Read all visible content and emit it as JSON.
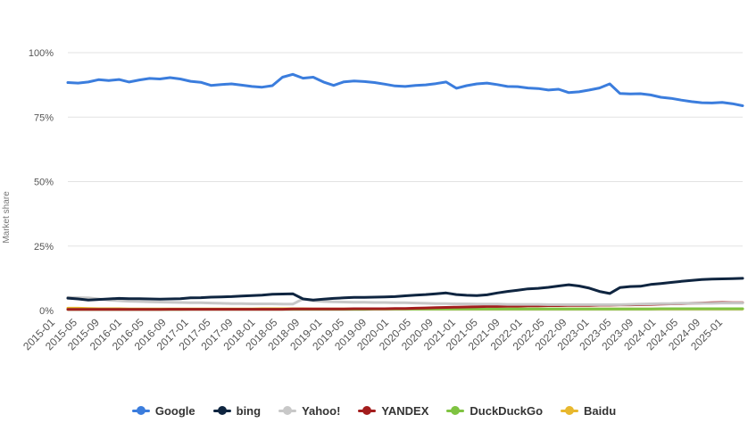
{
  "chart_data": {
    "type": "line",
    "title": "",
    "xlabel": "",
    "ylabel": "Market share",
    "ylim": [
      0,
      100
    ],
    "yticks": [
      "0%",
      "25%",
      "50%",
      "75%",
      "100%"
    ],
    "x_tick_labels": [
      "2015-01",
      "2015-05",
      "2015-09",
      "2016-01",
      "2016-05",
      "2016-09",
      "2017-01",
      "2017-05",
      "2017-09",
      "2018-01",
      "2018-05",
      "2018-09",
      "2019-01",
      "2019-05",
      "2019-09",
      "2020-01",
      "2020-05",
      "2020-09",
      "2021-01",
      "2021-05",
      "2021-09",
      "2022-01",
      "2022-05",
      "2022-09",
      "2023-01",
      "2023-05",
      "2023-09",
      "2024-01",
      "2024-05",
      "2024-09",
      "2025-01"
    ],
    "grid": true,
    "legend_position": "bottom-center",
    "series": [
      {
        "name": "Google",
        "color": "#3b7ddd",
        "values": [
          88.4,
          88.2,
          88.6,
          89.5,
          89.2,
          89.6,
          88.6,
          89.4,
          90.0,
          89.8,
          90.3,
          89.8,
          88.9,
          88.5,
          87.3,
          87.6,
          87.9,
          87.4,
          86.9,
          86.6,
          87.2,
          90.5,
          91.6,
          90.1,
          90.5,
          88.6,
          87.3,
          88.7,
          89.0,
          88.8,
          88.4,
          87.8,
          87.1,
          86.9,
          87.3,
          87.5,
          88.0,
          88.6,
          86.2,
          87.2,
          87.9,
          88.2,
          87.6,
          86.9,
          86.8,
          86.3,
          86.1,
          85.5,
          85.8,
          84.5,
          84.8,
          85.5,
          86.3,
          87.9,
          84.2,
          84.0,
          84.1,
          83.6,
          82.7,
          82.3,
          81.6,
          81.0,
          80.6,
          80.5,
          80.7,
          80.2,
          79.4
        ]
      },
      {
        "name": "bing",
        "color": "#0f2540",
        "values": [
          4.8,
          4.5,
          4.1,
          4.3,
          4.5,
          4.7,
          4.6,
          4.6,
          4.5,
          4.4,
          4.5,
          4.6,
          4.9,
          5.0,
          5.2,
          5.3,
          5.4,
          5.6,
          5.8,
          6.0,
          6.3,
          6.4,
          6.5,
          4.5,
          4.1,
          4.4,
          4.7,
          4.9,
          5.1,
          5.1,
          5.2,
          5.3,
          5.4,
          5.7,
          6.0,
          6.2,
          6.5,
          6.8,
          6.2,
          5.9,
          5.8,
          6.1,
          6.8,
          7.4,
          7.9,
          8.4,
          8.6,
          9.0,
          9.5,
          10.0,
          9.5,
          8.7,
          7.4,
          6.6,
          8.9,
          9.3,
          9.4,
          10.1,
          10.5,
          10.9,
          11.3,
          11.7,
          12.0,
          12.2,
          12.3,
          12.4,
          12.5
        ]
      },
      {
        "name": "Yahoo!",
        "color": "#c8c8c8",
        "values": [
          5.1,
          5.0,
          4.9,
          4.5,
          4.0,
          3.8,
          3.6,
          3.5,
          3.4,
          3.3,
          3.2,
          3.1,
          3.0,
          3.0,
          2.9,
          2.8,
          2.7,
          2.7,
          2.6,
          2.6,
          2.6,
          2.5,
          2.5,
          4.5,
          3.8,
          3.5,
          3.4,
          3.3,
          3.2,
          3.2,
          3.1,
          3.1,
          3.0,
          3.0,
          2.9,
          2.8,
          2.7,
          2.7,
          2.6,
          2.6,
          2.5,
          2.5,
          2.5,
          2.4,
          2.4,
          2.4,
          2.4,
          2.3,
          2.3,
          2.3,
          2.3,
          2.3,
          2.3,
          2.3,
          2.3,
          2.4,
          2.5,
          2.6,
          2.7,
          2.7,
          2.8,
          2.8,
          2.8,
          2.8,
          2.9,
          2.9,
          2.9
        ]
      },
      {
        "name": "YANDEX",
        "color": "#a31d1d",
        "values": [
          0.4,
          0.4,
          0.4,
          0.4,
          0.4,
          0.4,
          0.4,
          0.4,
          0.4,
          0.4,
          0.5,
          0.5,
          0.5,
          0.5,
          0.5,
          0.5,
          0.5,
          0.5,
          0.5,
          0.5,
          0.5,
          0.5,
          0.6,
          0.6,
          0.6,
          0.6,
          0.6,
          0.6,
          0.7,
          0.7,
          0.7,
          0.7,
          0.8,
          0.8,
          0.9,
          1.0,
          1.1,
          1.2,
          1.3,
          1.4,
          1.5,
          1.6,
          1.6,
          1.7,
          1.7,
          1.8,
          1.8,
          1.9,
          1.9,
          2.0,
          2.0,
          2.0,
          2.1,
          2.1,
          2.2,
          2.2,
          2.3,
          2.4,
          2.5,
          2.6,
          2.7,
          2.8,
          2.9,
          3.0,
          3.1,
          3.0,
          3.0
        ]
      },
      {
        "name": "DuckDuckGo",
        "color": "#7fc341",
        "values": [
          0.4,
          0.4,
          0.4,
          0.4,
          0.4,
          0.4,
          0.4,
          0.4,
          0.4,
          0.4,
          0.4,
          0.4,
          0.5,
          0.5,
          0.5,
          0.5,
          0.5,
          0.5,
          0.5,
          0.5,
          0.5,
          0.5,
          0.5,
          0.5,
          0.5,
          0.5,
          0.5,
          0.5,
          0.5,
          0.5,
          0.6,
          0.6,
          0.6,
          0.6,
          0.6,
          0.6,
          0.6,
          0.6,
          0.6,
          0.6,
          0.6,
          0.6,
          0.6,
          0.6,
          0.6,
          0.6,
          0.6,
          0.6,
          0.6,
          0.6,
          0.6,
          0.6,
          0.6,
          0.6,
          0.6,
          0.6,
          0.6,
          0.6,
          0.7,
          0.7,
          0.7,
          0.7,
          0.7,
          0.7,
          0.7,
          0.7,
          0.7
        ]
      },
      {
        "name": "Baidu",
        "color": "#e8b82e",
        "values": [
          0.9,
          0.9,
          0.8,
          0.7,
          0.7,
          0.7,
          0.6,
          0.6,
          0.6,
          0.6,
          0.6,
          0.6,
          0.6,
          0.6,
          0.6,
          0.6,
          0.6,
          0.6,
          0.6,
          0.7,
          0.7,
          0.7,
          0.7,
          0.7,
          0.6,
          0.6,
          0.6,
          0.6,
          0.6,
          0.6,
          0.6,
          0.6,
          0.6,
          0.6,
          0.6,
          0.6,
          0.6,
          0.6,
          0.6,
          0.6,
          0.6,
          0.6,
          0.6,
          0.6,
          0.6,
          0.6,
          0.6,
          0.6,
          0.6,
          0.6,
          0.6,
          0.6,
          0.6,
          0.6,
          0.6,
          0.6,
          0.6,
          0.6,
          0.6,
          0.6,
          0.6,
          0.6,
          0.6,
          0.6,
          0.6,
          0.6,
          0.6
        ]
      }
    ]
  }
}
